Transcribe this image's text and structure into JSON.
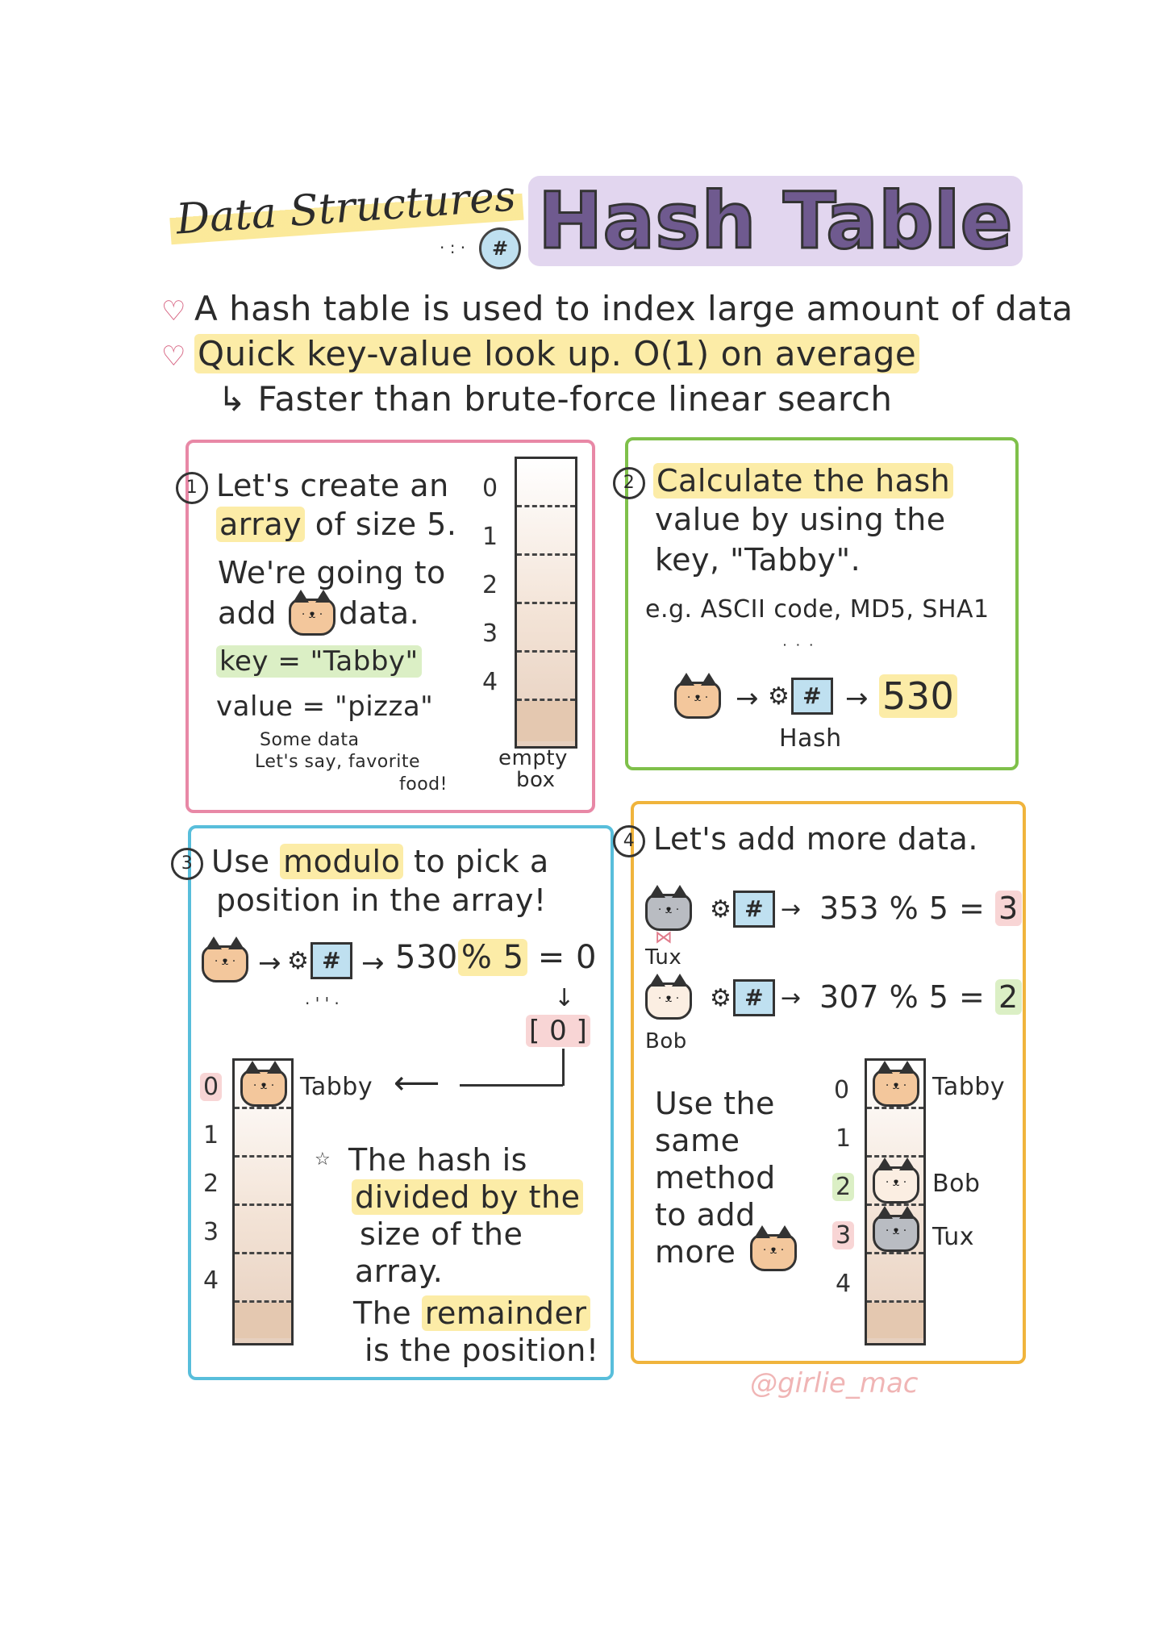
{
  "title": {
    "left": "Data Structures",
    "right": "Hash Table",
    "badge": "#"
  },
  "bullets": [
    "A hash table is used to index large amount of data",
    "Quick key-value look up. O(1) on average",
    "Faster than brute-force linear search"
  ],
  "colors": {
    "pink": "#e888a6",
    "green": "#7fc04a",
    "blue": "#58bedb",
    "orange": "#f0b43c",
    "title": "#6f5a8f"
  },
  "step1": {
    "number": "1",
    "line1": "Let's create an",
    "line2a": "array",
    "line2b": " of size 5.",
    "line3": "We're going to",
    "line4a": "add",
    "line4b": "data.",
    "key": "key = \"Tabby\"",
    "value": "value = \"pizza\"",
    "note1": "Some data",
    "note2": "Let's say, favorite",
    "note3": "food!",
    "indices": [
      "0",
      "1",
      "2",
      "3",
      "4"
    ],
    "empty": "empty",
    "box": "box"
  },
  "step2": {
    "number": "2",
    "line1": "Calculate the hash",
    "line2": "value by using the",
    "line3": "key, \"Tabby\".",
    "line4": "e.g. ASCII code, MD5, SHA1",
    "arrow1": "→",
    "hashsym": "#",
    "arrow2": "→",
    "result": "530",
    "hash_label": "Hash"
  },
  "step3": {
    "number": "3",
    "line1a": "Use ",
    "line1b": "modulo",
    "line1c": " to pick a",
    "line2": "position in the array!",
    "arrow1": "→",
    "hashsym": "#",
    "arrow2": "→",
    "calc_a": "530",
    "calc_b": "% 5",
    "calc_c": " = 0",
    "down": "↓",
    "bracket": "[ 0 ]",
    "indices": [
      "0",
      "1",
      "2",
      "3",
      "4"
    ],
    "tabby": "Tabby",
    "left_arrow": "⟵",
    "note1": "The hash is",
    "note2": "divided by the",
    "note3": "size of the",
    "note4": "array.",
    "note5a": "The ",
    "note5b": "remainder",
    "note6": "is the position!"
  },
  "step4": {
    "number": "4",
    "line1": "Let's add more data.",
    "tux": "Tux",
    "tux_calc": "353 % 5 = ",
    "tux_result": "3",
    "bob": "Bob",
    "bob_calc": "307 % 5 = ",
    "bob_result": "2",
    "arrow": "→",
    "hashsym": "#",
    "note1": "Use the",
    "note2": "same",
    "note3": "method",
    "note4": "to add",
    "note5": "more",
    "indices": [
      "0",
      "1",
      "2",
      "3",
      "4"
    ],
    "tabby": "Tabby",
    "bob_label": "Bob",
    "tux_label": "Tux"
  },
  "signature": "@girlie_mac"
}
